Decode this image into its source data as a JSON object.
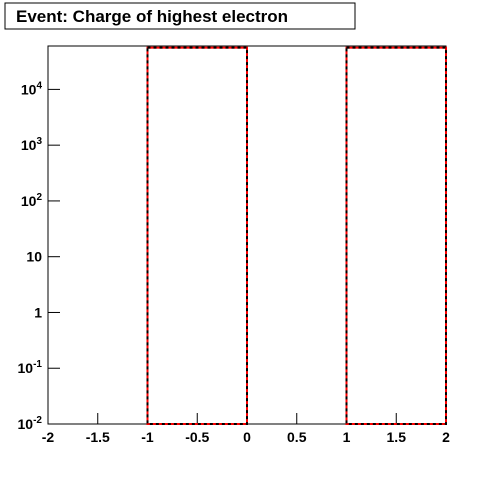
{
  "chart_data": {
    "type": "histogram",
    "title": "Event: Charge of highest electron",
    "bins": [
      -2,
      -1,
      0,
      1,
      2
    ],
    "series": [
      {
        "color": "#ff0000",
        "values": [
          0,
          56000,
          0,
          56000
        ]
      },
      {
        "color": "#000000",
        "dashed": true,
        "values": [
          0,
          56000,
          0,
          56000
        ]
      }
    ],
    "log_y": true,
    "xlim": [
      -2,
      2
    ],
    "xticks": [
      -2,
      -1.5,
      -1,
      -0.5,
      0,
      0.5,
      1,
      1.5,
      2
    ],
    "ylim": [
      0.01,
      60000
    ],
    "yticks": [
      {
        "value": 0.01,
        "label": "10",
        "sup": "-2"
      },
      {
        "value": 0.1,
        "label": "10",
        "sup": "-1"
      },
      1,
      10,
      {
        "value": 100,
        "label": "10",
        "sup": "2"
      },
      {
        "value": 1000,
        "label": "10",
        "sup": "3"
      },
      {
        "value": 10000,
        "label": "10",
        "sup": "4"
      }
    ]
  }
}
